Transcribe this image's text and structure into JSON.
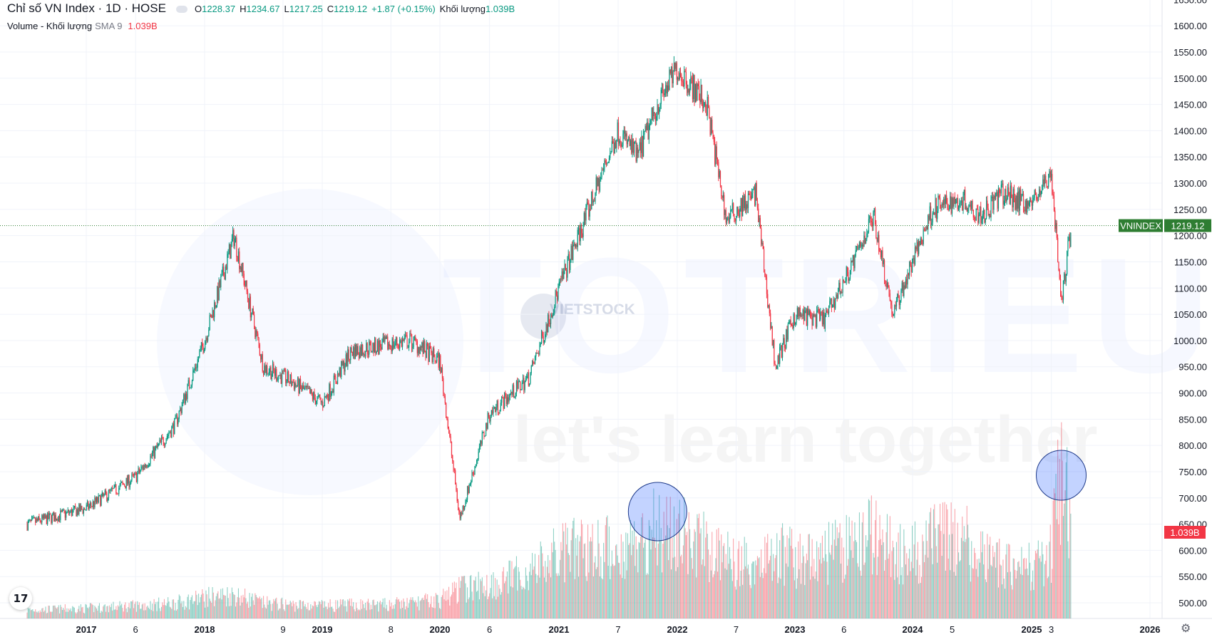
{
  "header": {
    "title": "Chỉ số VN Index · 1D · HOSE",
    "open_label": "O",
    "open": "1228.37",
    "high_label": "H",
    "high": "1234.67",
    "low_label": "L",
    "low": "1217.25",
    "close_label": "C",
    "close": "1219.12",
    "change": "+1.87 (+0.15%)",
    "volume_label": "Khối lượng",
    "volume": "1.039B"
  },
  "volume_indicator": {
    "name": "Volume - Khối lượng",
    "sma": "SMA 9",
    "value": "1.039B"
  },
  "watermark": {
    "main": "TOTRIEU",
    "tagline": "let's learn together",
    "brand": "VIETSTOCK"
  },
  "colors": {
    "up": "#089981",
    "down": "#f23645",
    "price_tag": "#2e7d32",
    "vol_tag": "#f23645",
    "circle": "#2962ff"
  },
  "chart_data": {
    "type": "line",
    "title": "Chỉ số VN Index · 1D · HOSE",
    "series": [
      {
        "name": "VNINDEX",
        "x": [
          "2016-07",
          "2017-01",
          "2017-06",
          "2017-10",
          "2018-01",
          "2018-04",
          "2018-07",
          "2018-10",
          "2019-01",
          "2019-04",
          "2019-07",
          "2019-10",
          "2020-01",
          "2020-03",
          "2020-06",
          "2020-10",
          "2021-01",
          "2021-04",
          "2021-07",
          "2021-09",
          "2021-11",
          "2022-01",
          "2022-04",
          "2022-06",
          "2022-09",
          "2022-11",
          "2023-01",
          "2023-04",
          "2023-07",
          "2023-09",
          "2023-11",
          "2024-01",
          "2024-03",
          "2024-06",
          "2024-08",
          "2024-10",
          "2025-01",
          "2025-03",
          "2025-04",
          "2025-05"
        ],
        "values": [
          650,
          680,
          740,
          840,
          1000,
          1200,
          950,
          920,
          880,
          980,
          990,
          1000,
          960,
          660,
          860,
          930,
          1100,
          1250,
          1400,
          1350,
          1450,
          1520,
          1450,
          1230,
          1280,
          950,
          1050,
          1040,
          1150,
          1240,
          1050,
          1150,
          1250,
          1270,
          1240,
          1280,
          1260,
          1320,
          1070,
          1219
        ]
      },
      {
        "name": "Volume - Khối lượng",
        "x": [
          "2016-07",
          "2017-01",
          "2017-06",
          "2017-10",
          "2018-01",
          "2018-04",
          "2018-07",
          "2018-10",
          "2019-01",
          "2019-04",
          "2019-07",
          "2019-10",
          "2020-01",
          "2020-03",
          "2020-06",
          "2020-10",
          "2021-01",
          "2021-04",
          "2021-07",
          "2021-09",
          "2021-11",
          "2022-01",
          "2022-04",
          "2022-06",
          "2022-09",
          "2022-11",
          "2023-01",
          "2023-04",
          "2023-07",
          "2023-09",
          "2023-11",
          "2024-01",
          "2024-03",
          "2024-06",
          "2024-08",
          "2024-10",
          "2025-01",
          "2025-03",
          "2025-04",
          "2025-05"
        ],
        "values": [
          0.1,
          0.12,
          0.15,
          0.18,
          0.25,
          0.28,
          0.18,
          0.16,
          0.15,
          0.16,
          0.16,
          0.18,
          0.22,
          0.35,
          0.4,
          0.55,
          0.75,
          0.85,
          0.8,
          0.9,
          1.1,
          1.0,
          0.85,
          0.7,
          0.65,
          0.8,
          0.7,
          0.75,
          0.85,
          1.0,
          0.8,
          0.75,
          0.9,
          0.95,
          0.7,
          0.65,
          0.6,
          0.75,
          1.8,
          1.039
        ]
      }
    ],
    "x_ticks": [
      "2017",
      "6",
      "2018",
      "9",
      "2019",
      "8",
      "2020",
      "6",
      "2021",
      "7",
      "2022",
      "7",
      "2023",
      "6",
      "2024",
      "5",
      "2025",
      "3",
      "2026"
    ],
    "y_ticks": [
      "1650.00",
      "1600.00",
      "1550.00",
      "1500.00",
      "1450.00",
      "1400.00",
      "1350.00",
      "1300.00",
      "1250.00",
      "1200.00",
      "1150.00",
      "1100.00",
      "1050.00",
      "1000.00",
      "950.00",
      "900.00",
      "850.00",
      "800.00",
      "750.00",
      "700.00",
      "650.00",
      "600.00",
      "550.00",
      "500.00"
    ],
    "ylim": [
      475,
      1660
    ],
    "last_price": {
      "label": "VNINDEX",
      "value": "1219.12"
    },
    "last_volume": {
      "value": "1.039B"
    },
    "highlights": [
      "2021-11",
      "2025-04"
    ],
    "grid": true
  }
}
